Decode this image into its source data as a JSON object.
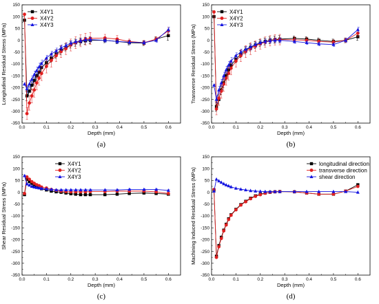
{
  "chart_data": [
    {
      "type": "line",
      "panel_label": "(a)",
      "xlabel": "Depth (mm)",
      "ylabel": "Longitudinal Residual Stress (MPa)",
      "xlim": [
        0.0,
        0.65
      ],
      "ylim": [
        -350,
        150
      ],
      "xticks": [
        "0.0",
        "0.1",
        "0.2",
        "0.3",
        "0.4",
        "0.5",
        "0.6"
      ],
      "yticks": [
        "-350",
        "-300",
        "-250",
        "-200",
        "-150",
        "-100",
        "-50",
        "0",
        "50",
        "100",
        "150"
      ],
      "legend": "top-left",
      "series": [
        {
          "name": "X4Y1",
          "color": "#000000",
          "marker": "square",
          "x": [
            0.01,
            0.02,
            0.03,
            0.04,
            0.05,
            0.06,
            0.07,
            0.08,
            0.1,
            0.12,
            0.14,
            0.16,
            0.18,
            0.2,
            0.22,
            0.24,
            0.26,
            0.28,
            0.34,
            0.39,
            0.44,
            0.5,
            0.55,
            0.6
          ],
          "y": [
            85,
            -235,
            -215,
            -190,
            -170,
            -150,
            -135,
            -115,
            -95,
            -75,
            -58,
            -42,
            -30,
            -18,
            -10,
            -5,
            -2,
            0,
            0,
            -5,
            -10,
            -12,
            5,
            20
          ],
          "err": [
            5,
            20,
            20,
            20,
            20,
            20,
            20,
            20,
            18,
            18,
            18,
            18,
            15,
            15,
            15,
            15,
            15,
            15,
            10,
            10,
            10,
            10,
            10,
            20
          ]
        },
        {
          "name": "X4Y2",
          "color": "#e02020",
          "marker": "circle",
          "x": [
            0.01,
            0.02,
            0.03,
            0.04,
            0.05,
            0.06,
            0.07,
            0.08,
            0.1,
            0.12,
            0.14,
            0.16,
            0.18,
            0.2,
            0.22,
            0.24,
            0.26,
            0.28,
            0.34,
            0.39,
            0.44,
            0.5,
            0.55,
            0.6
          ],
          "y": [
            110,
            -310,
            -265,
            -235,
            -210,
            -180,
            -160,
            -140,
            -110,
            -85,
            -65,
            -48,
            -35,
            -20,
            -10,
            -2,
            5,
            8,
            10,
            5,
            -5,
            -10,
            5,
            40
          ],
          "err": [
            5,
            25,
            30,
            30,
            30,
            30,
            30,
            30,
            28,
            28,
            25,
            25,
            25,
            25,
            25,
            25,
            25,
            25,
            15,
            15,
            10,
            10,
            10,
            15
          ]
        },
        {
          "name": "X4Y3",
          "color": "#1515e0",
          "marker": "triangle",
          "x": [
            0.01,
            0.02,
            0.03,
            0.04,
            0.05,
            0.06,
            0.07,
            0.08,
            0.1,
            0.12,
            0.14,
            0.16,
            0.18,
            0.2,
            0.22,
            0.24,
            0.26,
            0.28,
            0.34,
            0.39,
            0.44,
            0.5,
            0.55,
            0.6
          ],
          "y": [
            -185,
            -205,
            -185,
            -165,
            -145,
            -128,
            -112,
            -98,
            -75,
            -58,
            -45,
            -32,
            -22,
            -12,
            -6,
            -2,
            2,
            3,
            0,
            -5,
            -8,
            -10,
            0,
            45
          ],
          "err": [
            5,
            15,
            15,
            15,
            15,
            15,
            15,
            15,
            12,
            12,
            12,
            12,
            10,
            10,
            10,
            10,
            10,
            10,
            8,
            8,
            8,
            8,
            8,
            10
          ]
        }
      ]
    },
    {
      "type": "line",
      "panel_label": "(b)",
      "xlabel": "Depth (mm)",
      "ylabel": "Transverse Residual Stress (MPa)",
      "xlim": [
        0.0,
        0.65
      ],
      "ylim": [
        -350,
        150
      ],
      "xticks": [
        "0.0",
        "0.1",
        "0.2",
        "0.3",
        "0.4",
        "0.5",
        "0.6"
      ],
      "yticks": [
        "-350",
        "-300",
        "-250",
        "-200",
        "-150",
        "-100",
        "-50",
        "0",
        "50",
        "100",
        "150"
      ],
      "legend": "top-left",
      "series": [
        {
          "name": "X4Y1",
          "color": "#000000",
          "marker": "square",
          "x": [
            0.01,
            0.02,
            0.03,
            0.04,
            0.05,
            0.06,
            0.07,
            0.08,
            0.1,
            0.12,
            0.14,
            0.16,
            0.18,
            0.2,
            0.22,
            0.24,
            0.26,
            0.28,
            0.34,
            0.39,
            0.44,
            0.5,
            0.55,
            0.6
          ],
          "y": [
            100,
            -280,
            -250,
            -210,
            -180,
            -150,
            -125,
            -105,
            -80,
            -58,
            -42,
            -30,
            -20,
            -12,
            -5,
            0,
            3,
            5,
            8,
            5,
            0,
            -5,
            0,
            15
          ],
          "err": [
            5,
            20,
            20,
            20,
            20,
            20,
            18,
            18,
            15,
            15,
            15,
            15,
            15,
            15,
            15,
            15,
            15,
            15,
            10,
            10,
            10,
            10,
            10,
            15
          ]
        },
        {
          "name": "X4Y2",
          "color": "#e02020",
          "marker": "circle",
          "x": [
            0.01,
            0.02,
            0.03,
            0.04,
            0.05,
            0.06,
            0.07,
            0.08,
            0.1,
            0.12,
            0.14,
            0.16,
            0.18,
            0.2,
            0.22,
            0.24,
            0.26,
            0.28,
            0.34,
            0.39,
            0.44,
            0.5,
            0.55,
            0.6
          ],
          "y": [
            120,
            -290,
            -245,
            -215,
            -185,
            -160,
            -140,
            -118,
            -88,
            -65,
            -48,
            -35,
            -25,
            -15,
            -8,
            -2,
            2,
            3,
            2,
            0,
            -5,
            -8,
            0,
            30
          ],
          "err": [
            5,
            25,
            30,
            30,
            30,
            30,
            28,
            28,
            25,
            25,
            25,
            25,
            22,
            22,
            22,
            22,
            22,
            22,
            12,
            12,
            10,
            10,
            10,
            15
          ]
        },
        {
          "name": "X4Y3",
          "color": "#1515e0",
          "marker": "triangle",
          "x": [
            0.01,
            0.02,
            0.03,
            0.04,
            0.05,
            0.06,
            0.07,
            0.08,
            0.1,
            0.12,
            0.14,
            0.16,
            0.18,
            0.2,
            0.22,
            0.24,
            0.26,
            0.28,
            0.34,
            0.39,
            0.44,
            0.5,
            0.55,
            0.6
          ],
          "y": [
            -190,
            -250,
            -210,
            -180,
            -150,
            -125,
            -105,
            -88,
            -65,
            -50,
            -38,
            -28,
            -18,
            -10,
            -5,
            -2,
            0,
            0,
            -5,
            -10,
            -15,
            -18,
            0,
            45
          ],
          "err": [
            5,
            15,
            15,
            15,
            15,
            15,
            15,
            15,
            12,
            12,
            12,
            12,
            10,
            10,
            10,
            10,
            10,
            10,
            8,
            8,
            8,
            8,
            8,
            10
          ]
        }
      ]
    },
    {
      "type": "line",
      "panel_label": "(c)",
      "xlabel": "Depth (mm)",
      "ylabel": "Shear Residual Stress (MPa)",
      "xlim": [
        0.0,
        0.65
      ],
      "ylim": [
        -350,
        150
      ],
      "xticks": [
        "0.0",
        "0.1",
        "0.2",
        "0.3",
        "0.4",
        "0.5",
        "0.6"
      ],
      "yticks": [
        "-350",
        "-300",
        "-250",
        "-200",
        "-150",
        "-100",
        "-50",
        "0",
        "50",
        "100",
        "150"
      ],
      "legend": "top-right",
      "series": [
        {
          "name": "X4Y1",
          "color": "#000000",
          "marker": "square",
          "x": [
            0.01,
            0.02,
            0.03,
            0.04,
            0.05,
            0.06,
            0.07,
            0.08,
            0.1,
            0.12,
            0.14,
            0.16,
            0.18,
            0.2,
            0.22,
            0.24,
            0.26,
            0.28,
            0.34,
            0.39,
            0.44,
            0.5,
            0.55,
            0.6
          ],
          "y": [
            -10,
            55,
            45,
            38,
            30,
            25,
            20,
            15,
            10,
            5,
            2,
            0,
            -3,
            -6,
            -8,
            -10,
            -10,
            -10,
            -10,
            -8,
            -5,
            -3,
            -5,
            -8
          ],
          "err": [
            3,
            3,
            3,
            3,
            3,
            3,
            3,
            3,
            3,
            3,
            3,
            3,
            3,
            3,
            3,
            3,
            3,
            3,
            3,
            3,
            3,
            3,
            3,
            3
          ]
        },
        {
          "name": "X4Y2",
          "color": "#e02020",
          "marker": "circle",
          "x": [
            0.01,
            0.02,
            0.03,
            0.04,
            0.05,
            0.06,
            0.07,
            0.08,
            0.1,
            0.12,
            0.14,
            0.16,
            0.18,
            0.2,
            0.22,
            0.24,
            0.26,
            0.28,
            0.34,
            0.39,
            0.44,
            0.5,
            0.55,
            0.6
          ],
          "y": [
            -5,
            65,
            55,
            45,
            38,
            32,
            28,
            22,
            18,
            12,
            8,
            5,
            3,
            2,
            2,
            2,
            2,
            3,
            3,
            5,
            5,
            5,
            2,
            -5
          ],
          "err": [
            3,
            3,
            3,
            3,
            3,
            3,
            3,
            3,
            3,
            3,
            3,
            3,
            3,
            3,
            3,
            3,
            3,
            3,
            3,
            3,
            3,
            3,
            3,
            3
          ]
        },
        {
          "name": "X4Y3",
          "color": "#1515e0",
          "marker": "triangle",
          "x": [
            0.01,
            0.02,
            0.03,
            0.04,
            0.05,
            0.06,
            0.07,
            0.08,
            0.1,
            0.12,
            0.14,
            0.16,
            0.18,
            0.2,
            0.22,
            0.24,
            0.26,
            0.28,
            0.34,
            0.39,
            0.44,
            0.5,
            0.55,
            0.6
          ],
          "y": [
            70,
            35,
            30,
            25,
            22,
            20,
            18,
            16,
            14,
            12,
            10,
            10,
            10,
            10,
            10,
            10,
            10,
            10,
            10,
            10,
            12,
            12,
            12,
            8
          ],
          "err": [
            3,
            3,
            3,
            3,
            3,
            3,
            3,
            3,
            3,
            3,
            3,
            3,
            3,
            3,
            3,
            3,
            3,
            3,
            3,
            3,
            3,
            3,
            3,
            3
          ]
        }
      ]
    },
    {
      "type": "line",
      "panel_label": "(d)",
      "xlabel": "Depth (mm)",
      "ylabel": "Machining Induced Residual Stress (MPa)",
      "xlim": [
        0.0,
        0.65
      ],
      "ylim": [
        -350,
        150
      ],
      "xticks": [
        "0.0",
        "0.1",
        "0.2",
        "0.3",
        "0.4",
        "0.5",
        "0.6"
      ],
      "yticks": [
        "-350",
        "-300",
        "-250",
        "-200",
        "-150",
        "-100",
        "-50",
        "0",
        "50",
        "100",
        "150"
      ],
      "legend": "top-right",
      "series": [
        {
          "name": "longitudinal direction",
          "color": "#000000",
          "marker": "square",
          "x": [
            0.01,
            0.02,
            0.03,
            0.04,
            0.05,
            0.06,
            0.07,
            0.08,
            0.1,
            0.12,
            0.14,
            0.16,
            0.18,
            0.2,
            0.22,
            0.24,
            0.26,
            0.28,
            0.34,
            0.39,
            0.44,
            0.5,
            0.55,
            0.6
          ],
          "y": [
            10,
            -270,
            -225,
            -190,
            -160,
            -135,
            -112,
            -95,
            -72,
            -52,
            -38,
            -25,
            -15,
            -8,
            -3,
            0,
            2,
            3,
            2,
            -3,
            -8,
            -8,
            5,
            32
          ],
          "err": []
        },
        {
          "name": "transverse direction",
          "color": "#e02020",
          "marker": "circle",
          "x": [
            0.01,
            0.02,
            0.03,
            0.04,
            0.05,
            0.06,
            0.07,
            0.08,
            0.1,
            0.12,
            0.14,
            0.16,
            0.18,
            0.2,
            0.22,
            0.24,
            0.26,
            0.28,
            0.34,
            0.39,
            0.44,
            0.5,
            0.55,
            0.6
          ],
          "y": [
            12,
            -275,
            -230,
            -195,
            -163,
            -138,
            -115,
            -97,
            -74,
            -54,
            -40,
            -27,
            -17,
            -10,
            -4,
            0,
            2,
            3,
            2,
            -3,
            -8,
            -8,
            5,
            25
          ],
          "err": []
        },
        {
          "name": "shear direction",
          "color": "#1515e0",
          "marker": "triangle",
          "x": [
            0.01,
            0.02,
            0.03,
            0.04,
            0.05,
            0.06,
            0.07,
            0.08,
            0.1,
            0.12,
            0.14,
            0.16,
            0.18,
            0.2,
            0.22,
            0.24,
            0.26,
            0.28,
            0.34,
            0.39,
            0.44,
            0.5,
            0.55,
            0.6
          ],
          "y": [
            5,
            55,
            48,
            42,
            36,
            31,
            27,
            23,
            17,
            13,
            10,
            7,
            5,
            4,
            3,
            3,
            3,
            3,
            3,
            3,
            3,
            3,
            3,
            0
          ],
          "err": []
        }
      ]
    }
  ]
}
